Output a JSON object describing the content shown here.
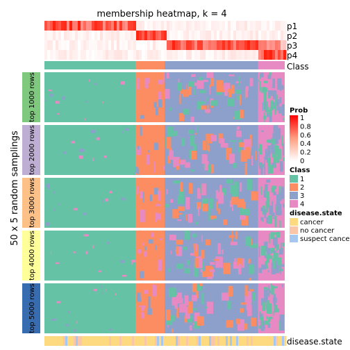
{
  "chart_data": {
    "type": "heatmap",
    "title": "membership heatmap, k = 4",
    "y_title": "50 x 5 random samplings",
    "top_annotation_rows": [
      "p1",
      "p2",
      "p3",
      "p4",
      "Class"
    ],
    "bottom_annotation": "disease.state",
    "row_slices": [
      "top 1000 rows",
      "top 2000 rows",
      "top 3000 rows",
      "top 4000 rows",
      "top 5000 rows"
    ],
    "row_slice_colors": [
      "#7FC97F",
      "#BEAED4",
      "#FDC086",
      "#FFFF99",
      "#386CB0"
    ],
    "column_class_fractions": [
      {
        "class": "1",
        "fraction": 0.38
      },
      {
        "class": "2",
        "fraction": 0.12
      },
      {
        "class": "3",
        "fraction": 0.39
      },
      {
        "class": "4",
        "fraction": 0.11
      }
    ],
    "legends": {
      "prob": {
        "title": "Prob",
        "ticks": [
          "1",
          "0.8",
          "0.6",
          "0.4",
          "0.2",
          "0"
        ],
        "colors": [
          "#FF0000",
          "#FFFFFF"
        ]
      },
      "class": {
        "title": "Class",
        "entries": [
          {
            "label": "1",
            "color": "#66C2A5"
          },
          {
            "label": "2",
            "color": "#FC8D62"
          },
          {
            "label": "3",
            "color": "#8DA0CB"
          },
          {
            "label": "4",
            "color": "#E78AC3"
          }
        ]
      },
      "disease_state": {
        "title": "disease.state",
        "entries": [
          {
            "label": "cancer",
            "color": "#FDDA80"
          },
          {
            "label": "no cancer",
            "color": "#F9C6A9"
          },
          {
            "label": "suspect cancer",
            "color": "#A6C8F0"
          }
        ]
      }
    }
  }
}
